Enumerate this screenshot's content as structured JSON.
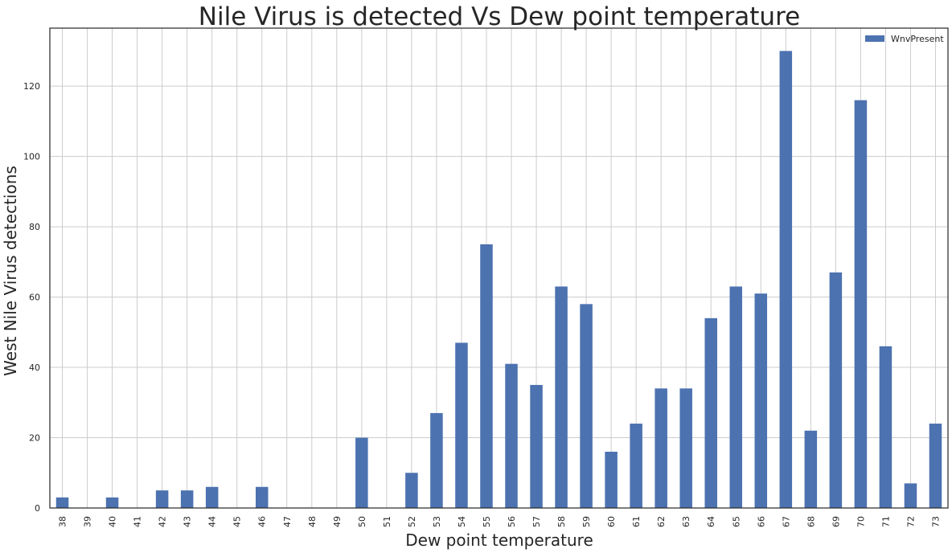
{
  "chart_data": {
    "type": "bar",
    "title": "Nile Virus is detected Vs Dew point temperature",
    "xlabel": "Dew point temperature",
    "ylabel": "West Nile Virus detections",
    "legend": {
      "position": "top-right",
      "entries": [
        "WnvPresent"
      ]
    },
    "grid": true,
    "ylim": [
      0,
      136.5
    ],
    "yticks": [
      0,
      20,
      40,
      60,
      80,
      100,
      120
    ],
    "categories": [
      "38",
      "39",
      "40",
      "41",
      "42",
      "43",
      "44",
      "45",
      "46",
      "47",
      "48",
      "49",
      "50",
      "51",
      "52",
      "53",
      "54",
      "55",
      "56",
      "57",
      "58",
      "59",
      "60",
      "61",
      "62",
      "63",
      "64",
      "65",
      "66",
      "67",
      "68",
      "69",
      "70",
      "71",
      "72",
      "73"
    ],
    "series": [
      {
        "name": "WnvPresent",
        "color": "#4c72b0",
        "values": [
          3,
          0,
          3,
          0,
          5,
          5,
          6,
          0,
          6,
          0,
          0,
          0,
          20,
          0,
          10,
          27,
          47,
          75,
          41,
          35,
          63,
          58,
          16,
          24,
          34,
          34,
          54,
          63,
          61,
          130,
          22,
          67,
          116,
          46,
          7,
          24
        ]
      }
    ]
  }
}
